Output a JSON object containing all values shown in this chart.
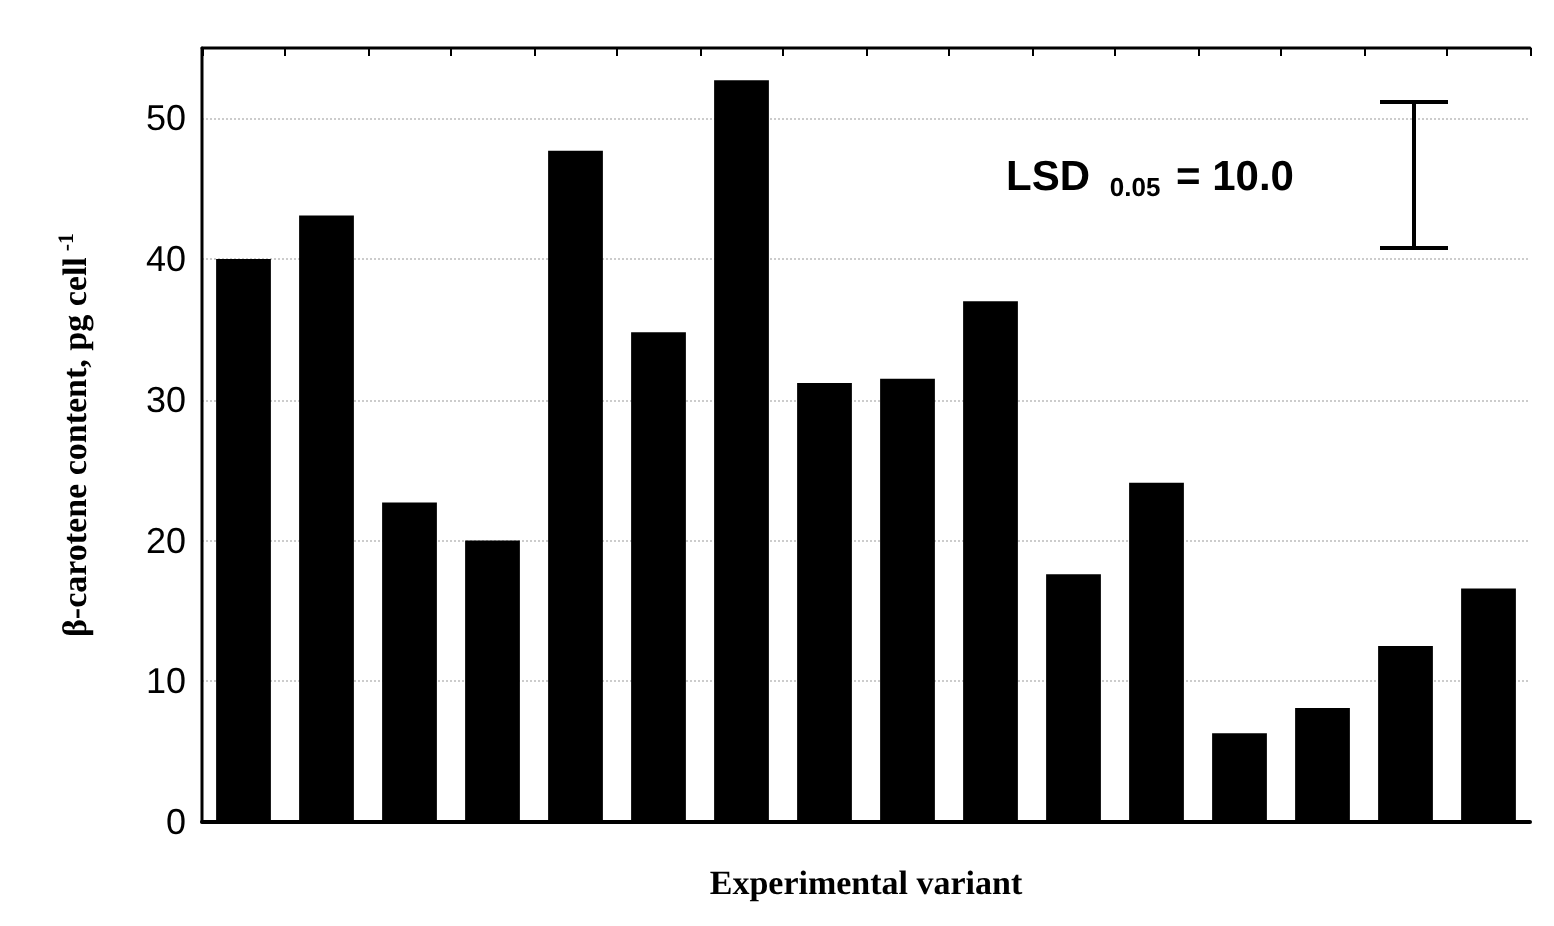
{
  "chart_data": {
    "type": "bar",
    "xlabel": "Experimental variant",
    "ylabel": "β-carotene content, pg cell$^{-1}$",
    "categories": [
      null,
      null,
      null,
      null,
      null,
      null,
      null,
      null,
      null,
      null,
      null,
      null,
      null,
      null,
      null,
      null
    ],
    "values": [
      40.0,
      43.1,
      22.7,
      20.0,
      47.7,
      34.8,
      52.7,
      31.2,
      31.5,
      37.0,
      17.6,
      24.1,
      6.3,
      8.1,
      12.5,
      16.6
    ],
    "color": "#000000",
    "ylim": [
      0,
      55
    ],
    "yticks": [
      0,
      10,
      20,
      30,
      40,
      50
    ],
    "grid": "y",
    "annotations": [
      "LSD $_{0.05}$ = 10.0"
    ]
  }
}
